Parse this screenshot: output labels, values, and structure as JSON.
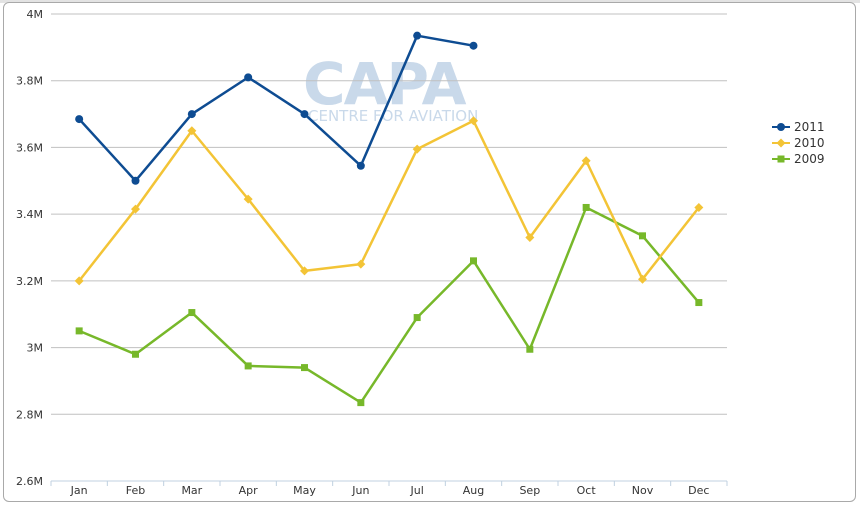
{
  "watermark": {
    "logo": "CAPA",
    "tagline": "CENTRE FOR AVIATION"
  },
  "chart_data": {
    "type": "line",
    "categories": [
      "Jan",
      "Feb",
      "Mar",
      "Apr",
      "May",
      "Jun",
      "Jul",
      "Aug",
      "Sep",
      "Oct",
      "Nov",
      "Dec"
    ],
    "y_ticks": [
      "2.6M",
      "2.8M",
      "3M",
      "3.2M",
      "3.4M",
      "3.6M",
      "3.8M",
      "4M"
    ],
    "ylim": [
      2600000,
      4000000
    ],
    "grid": true,
    "legend_position": "right",
    "series": [
      {
        "name": "2011",
        "color": "#0e4c92",
        "marker": "circle",
        "values": [
          3685000,
          3500000,
          3700000,
          3810000,
          3700000,
          3545000,
          3935000,
          3905000,
          null,
          null,
          null,
          null
        ]
      },
      {
        "name": "2010",
        "color": "#f3c436",
        "marker": "diamond",
        "values": [
          3200000,
          3415000,
          3650000,
          3445000,
          3230000,
          3250000,
          3595000,
          3680000,
          3330000,
          3560000,
          3205000,
          3420000
        ]
      },
      {
        "name": "2009",
        "color": "#77b82a",
        "marker": "square",
        "values": [
          3050000,
          2980000,
          3105000,
          2945000,
          2940000,
          2835000,
          3090000,
          3260000,
          2995000,
          3420000,
          3335000,
          3135000
        ]
      }
    ]
  }
}
